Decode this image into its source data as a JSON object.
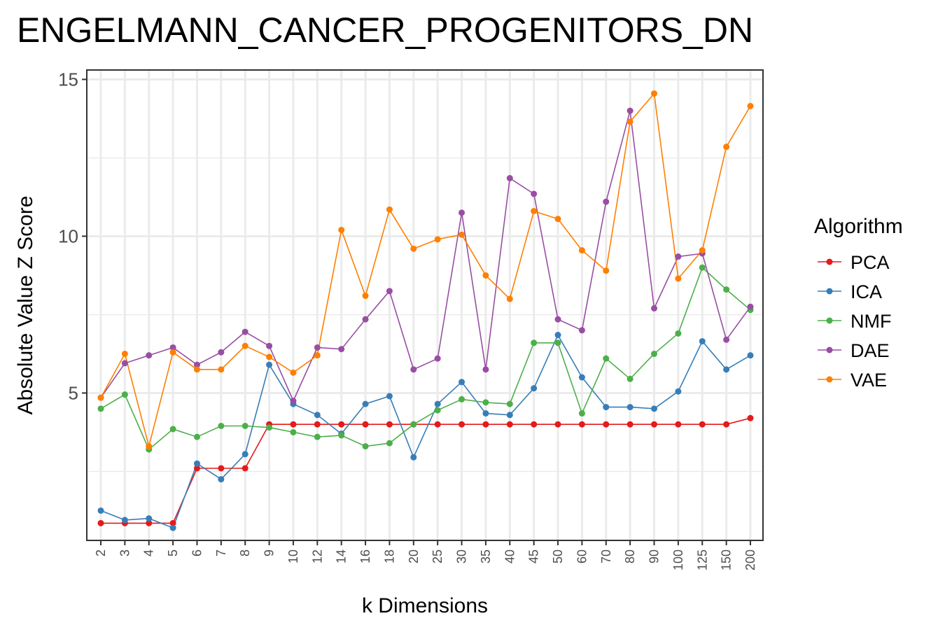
{
  "chart_data": {
    "type": "line",
    "title": "ENGELMANN_CANCER_PROGENITORS_DN",
    "xlabel": "k Dimensions",
    "ylabel": "Absolute Value Z Score",
    "categories": [
      "2",
      "3",
      "4",
      "5",
      "6",
      "7",
      "8",
      "9",
      "10",
      "12",
      "14",
      "16",
      "18",
      "20",
      "25",
      "30",
      "35",
      "40",
      "45",
      "50",
      "60",
      "70",
      "80",
      "90",
      "100",
      "125",
      "150",
      "200"
    ],
    "ylim": [
      0.3,
      15.3
    ],
    "yticks": [
      5,
      10,
      15
    ],
    "ytick_labels": [
      "5",
      "10",
      "15"
    ],
    "grid": true,
    "legend": {
      "title": "Algorithm",
      "position": "right"
    },
    "series": [
      {
        "name": "PCA",
        "color": "#e41a1c",
        "values": [
          0.85,
          0.85,
          0.85,
          0.85,
          2.6,
          2.6,
          2.6,
          4.0,
          4.0,
          4.0,
          4.0,
          4.0,
          4.0,
          4.0,
          4.0,
          4.0,
          4.0,
          4.0,
          4.0,
          4.0,
          4.0,
          4.0,
          4.0,
          4.0,
          4.0,
          4.0,
          4.0,
          4.2
        ]
      },
      {
        "name": "ICA",
        "color": "#377eb8",
        "values": [
          1.25,
          0.95,
          1.0,
          0.7,
          2.75,
          2.25,
          3.05,
          5.9,
          4.65,
          4.3,
          3.7,
          4.65,
          4.9,
          2.95,
          4.65,
          5.35,
          4.35,
          4.3,
          5.15,
          6.85,
          5.5,
          4.55,
          4.55,
          4.5,
          5.05,
          6.65,
          5.75,
          6.2
        ]
      },
      {
        "name": "NMF",
        "color": "#4daf4a",
        "values": [
          4.5,
          4.95,
          3.2,
          3.85,
          3.6,
          3.95,
          3.95,
          3.9,
          3.75,
          3.6,
          3.65,
          3.3,
          3.4,
          4.0,
          4.45,
          4.8,
          4.7,
          4.65,
          6.6,
          6.6,
          4.35,
          6.1,
          5.45,
          6.25,
          6.9,
          9.0,
          8.3,
          7.65
        ]
      },
      {
        "name": "DAE",
        "color": "#984ea3",
        "values": [
          4.85,
          5.95,
          6.2,
          6.45,
          5.9,
          6.3,
          6.95,
          6.5,
          4.75,
          6.45,
          6.4,
          7.35,
          8.25,
          5.75,
          6.1,
          10.75,
          5.75,
          11.85,
          11.35,
          7.35,
          7.0,
          11.1,
          14.0,
          7.7,
          9.35,
          9.45,
          6.7,
          7.75
        ]
      },
      {
        "name": "VAE",
        "color": "#ff7f00",
        "values": [
          4.85,
          6.25,
          3.3,
          6.3,
          5.75,
          5.75,
          6.5,
          6.15,
          5.65,
          6.2,
          10.2,
          8.1,
          10.85,
          9.6,
          9.9,
          10.05,
          8.75,
          8.0,
          10.8,
          10.55,
          9.55,
          8.9,
          13.65,
          14.55,
          8.65,
          9.55,
          12.85,
          14.15
        ]
      }
    ]
  }
}
